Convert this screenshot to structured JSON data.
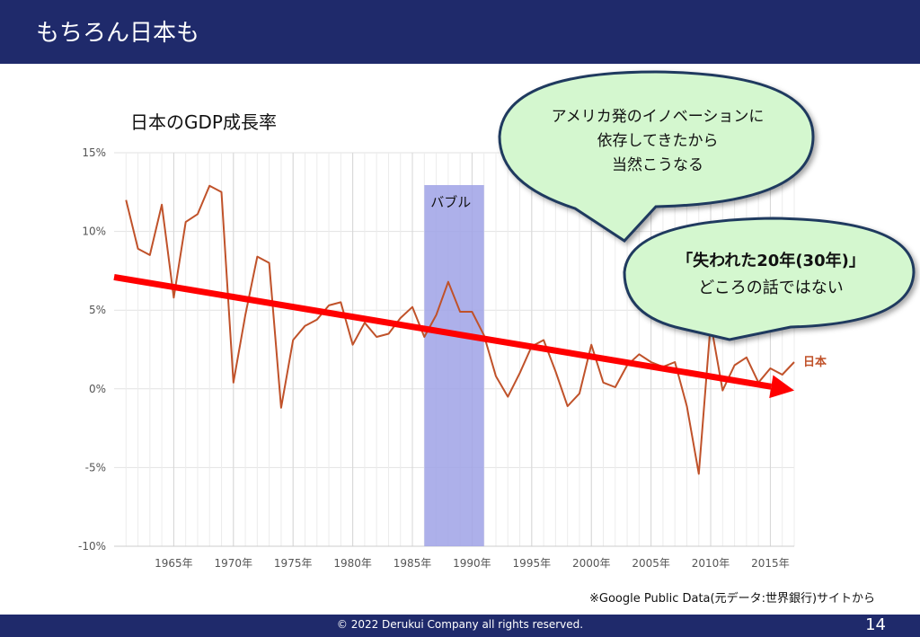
{
  "header": {
    "title": "もちろん日本も"
  },
  "footer": {
    "copyright": "© 2022 Derukui Company all rights reserved.",
    "page_number": "14"
  },
  "callouts": {
    "innovation": [
      "アメリカ発のイノベーションに",
      "依存してきたから",
      "当然こうなる"
    ],
    "lost_decades": [
      "「失われた20年(30年)」",
      "どころの話ではない"
    ]
  },
  "source_note": "※Google Public Data(元データ:世界銀行)サイトから",
  "colors": {
    "header": "#1f2a6b",
    "line": "#c0522a",
    "trend": "#ff0000",
    "bubble_band": "#9fa2e6",
    "callout_fill": "#d4f7cf"
  },
  "chart_data": {
    "type": "line",
    "title": "日本のGDP成長率",
    "xlabel": "",
    "ylabel": "",
    "xlim": [
      1960,
      2017
    ],
    "ylim": [
      -10,
      15
    ],
    "y_ticks": [
      "15%",
      "10%",
      "5%",
      "0%",
      "-5%",
      "-10%"
    ],
    "x_ticks": [
      "1965年",
      "1970年",
      "1975年",
      "1980年",
      "1985年",
      "1990年",
      "1995年",
      "2000年",
      "2005年",
      "2010年",
      "2015年"
    ],
    "grid": true,
    "series": [
      {
        "name": "日本",
        "x": [
          1961,
          1962,
          1963,
          1964,
          1965,
          1966,
          1967,
          1968,
          1969,
          1970,
          1971,
          1972,
          1973,
          1974,
          1975,
          1976,
          1977,
          1978,
          1979,
          1980,
          1981,
          1982,
          1983,
          1984,
          1985,
          1986,
          1987,
          1988,
          1989,
          1990,
          1991,
          1992,
          1993,
          1994,
          1995,
          1996,
          1997,
          1998,
          1999,
          2000,
          2001,
          2002,
          2003,
          2004,
          2005,
          2006,
          2007,
          2008,
          2009,
          2010,
          2011,
          2012,
          2013,
          2014,
          2015,
          2016,
          2017
        ],
        "values": [
          12.0,
          8.9,
          8.5,
          11.7,
          5.8,
          10.6,
          11.1,
          12.9,
          12.5,
          0.4,
          4.7,
          8.4,
          8.0,
          -1.2,
          3.1,
          4.0,
          4.4,
          5.3,
          5.5,
          2.8,
          4.2,
          3.3,
          3.5,
          4.5,
          5.2,
          3.3,
          4.7,
          6.8,
          4.9,
          4.9,
          3.4,
          0.8,
          -0.5,
          1.0,
          2.7,
          3.1,
          1.1,
          -1.1,
          -0.3,
          2.8,
          0.4,
          0.1,
          1.5,
          2.2,
          1.7,
          1.4,
          1.7,
          -1.1,
          -5.4,
          4.2,
          -0.1,
          1.5,
          2.0,
          0.4,
          1.3,
          0.9,
          1.7
        ]
      }
    ],
    "annotations": [
      {
        "label": "バブル",
        "x_range": [
          1986,
          1991
        ]
      },
      {
        "type": "trend_arrow",
        "from": [
          1960,
          7.1
        ],
        "to": [
          2017,
          -0.1
        ]
      }
    ]
  }
}
